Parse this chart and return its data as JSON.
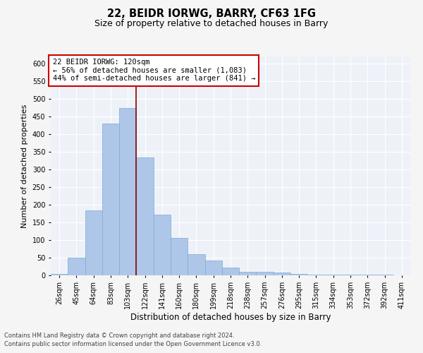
{
  "title1": "22, BEIDR IORWG, BARRY, CF63 1FG",
  "title2": "Size of property relative to detached houses in Barry",
  "xlabel": "Distribution of detached houses by size in Barry",
  "ylabel": "Number of detached properties",
  "categories": [
    "26sqm",
    "45sqm",
    "64sqm",
    "83sqm",
    "103sqm",
    "122sqm",
    "141sqm",
    "160sqm",
    "180sqm",
    "199sqm",
    "218sqm",
    "238sqm",
    "257sqm",
    "276sqm",
    "295sqm",
    "315sqm",
    "334sqm",
    "353sqm",
    "372sqm",
    "392sqm",
    "411sqm"
  ],
  "values": [
    5,
    50,
    185,
    430,
    475,
    335,
    172,
    107,
    60,
    43,
    22,
    10,
    10,
    8,
    5,
    3,
    2,
    2,
    2,
    2,
    1
  ],
  "bar_color": "#aec6e8",
  "bar_edge_color": "#7aadd4",
  "bg_color": "#eef2f8",
  "fig_bg_color": "#f5f5f5",
  "grid_color": "#ffffff",
  "vline_color": "#8b0000",
  "annotation_text": "22 BEIDR IORWG: 120sqm\n← 56% of detached houses are smaller (1,083)\n44% of semi-detached houses are larger (841) →",
  "annotation_box_color": "#ffffff",
  "annotation_box_edge_color": "#cc0000",
  "footnote1": "Contains HM Land Registry data © Crown copyright and database right 2024.",
  "footnote2": "Contains public sector information licensed under the Open Government Licence v3.0.",
  "ylim": [
    0,
    620
  ],
  "yticks": [
    0,
    50,
    100,
    150,
    200,
    250,
    300,
    350,
    400,
    450,
    500,
    550,
    600
  ],
  "title1_fontsize": 10.5,
  "title2_fontsize": 9,
  "xlabel_fontsize": 8.5,
  "ylabel_fontsize": 8,
  "tick_fontsize": 7,
  "footnote_fontsize": 6,
  "annotation_fontsize": 7.5
}
